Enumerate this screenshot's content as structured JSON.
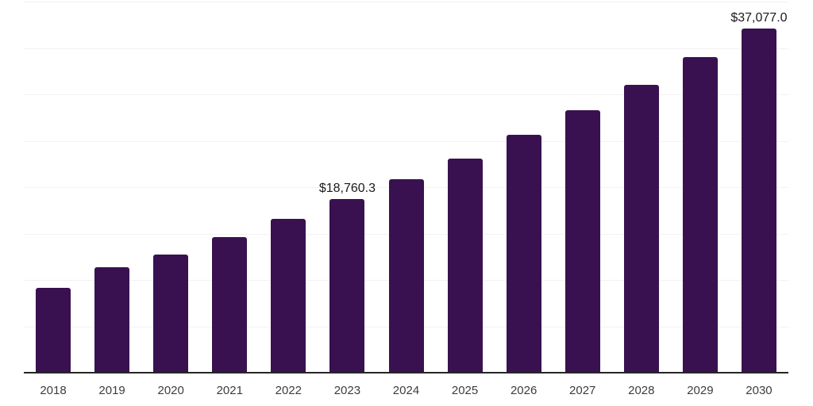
{
  "chart_data": {
    "type": "bar",
    "title": "",
    "xlabel": "",
    "ylabel": "",
    "categories": [
      "2018",
      "2019",
      "2020",
      "2021",
      "2022",
      "2023",
      "2024",
      "2025",
      "2026",
      "2027",
      "2028",
      "2029",
      "2030"
    ],
    "values": [
      9180,
      11360,
      12700,
      14640,
      16560,
      18760.3,
      20860,
      23100,
      25630,
      28280,
      31060,
      34040,
      37077.0
    ],
    "value_labels": [
      null,
      null,
      null,
      null,
      null,
      "$18,760.3",
      null,
      null,
      null,
      null,
      null,
      null,
      "$37,077.0"
    ],
    "ylim": [
      0,
      40000
    ],
    "grid": true,
    "grid_step": 5000,
    "legend": false,
    "colors": {
      "bar": "#391150",
      "gridline": "#f2f2f2",
      "axis_line": "#262626",
      "tick_label": "#3d3d3d",
      "value_label": "#1a1a1a",
      "background": "#ffffff"
    }
  }
}
